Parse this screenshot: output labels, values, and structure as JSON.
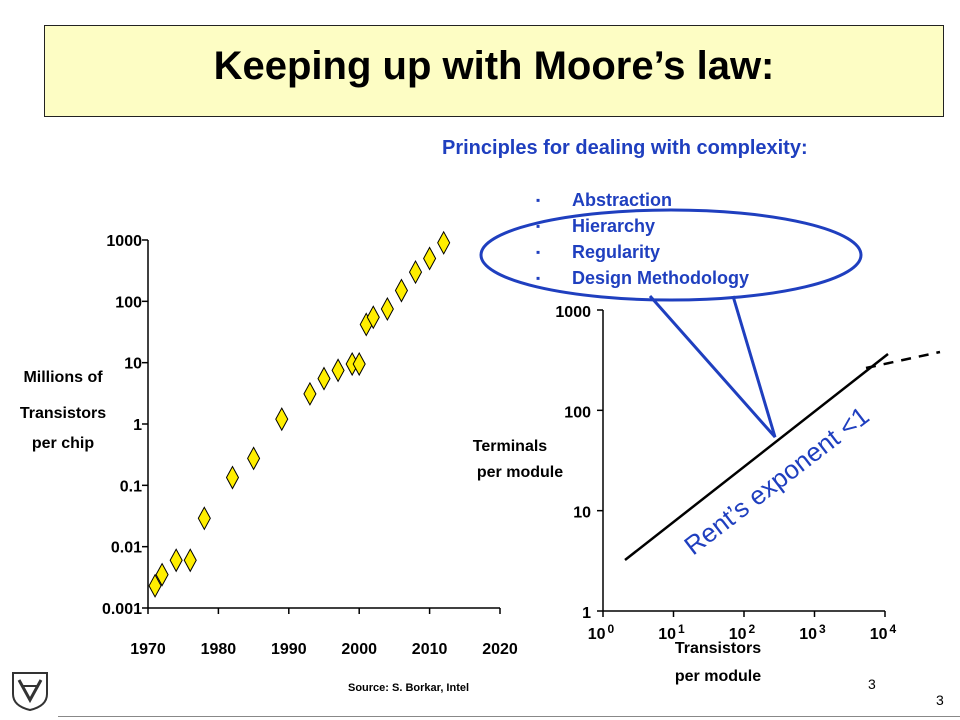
{
  "title": "Keeping up with Moore’s law:",
  "principles": {
    "heading": "Principles for dealing with complexity:",
    "bullet_char": "▪",
    "items": [
      "Abstraction",
      "Hierarchy",
      "Regularity",
      "Design Methodology"
    ]
  },
  "chart_data": [
    {
      "type": "scatter",
      "ylabel": [
        "Millions of",
        "Transistors",
        "per chip"
      ],
      "x_ticks": [
        "1970",
        "1980",
        "1990",
        "2000",
        "2010",
        "2020"
      ],
      "y_ticks": [
        "0.001",
        "0.01",
        "0.1",
        "1",
        "10",
        "100",
        "1000"
      ],
      "xlim": [
        1970,
        2020
      ],
      "ylim": [
        0.001,
        1000
      ],
      "y_scale": "log",
      "marker_color": "#ffee00",
      "points": [
        {
          "x": 1971,
          "y": 0.0023
        },
        {
          "x": 1972,
          "y": 0.0035
        },
        {
          "x": 1974,
          "y": 0.006
        },
        {
          "x": 1976,
          "y": 0.006
        },
        {
          "x": 1978,
          "y": 0.029
        },
        {
          "x": 1982,
          "y": 0.134
        },
        {
          "x": 1985,
          "y": 0.275
        },
        {
          "x": 1989,
          "y": 1.2
        },
        {
          "x": 1993,
          "y": 3.1
        },
        {
          "x": 1995,
          "y": 5.5
        },
        {
          "x": 1997,
          "y": 7.5
        },
        {
          "x": 1999,
          "y": 9.5
        },
        {
          "x": 2000,
          "y": 9.5
        },
        {
          "x": 2001,
          "y": 42
        },
        {
          "x": 2002,
          "y": 55
        },
        {
          "x": 2004,
          "y": 75
        },
        {
          "x": 2006,
          "y": 150
        },
        {
          "x": 2008,
          "y": 300
        },
        {
          "x": 2010,
          "y": 500
        },
        {
          "x": 2012,
          "y": 900
        }
      ]
    },
    {
      "type": "line",
      "ylabel": [
        "Terminals",
        "per module"
      ],
      "xlabel": [
        "Transistors",
        "per module"
      ],
      "x_ticks": [
        "10",
        "10",
        "10",
        "10",
        "10"
      ],
      "x_tick_exponents": [
        "0",
        "1",
        "2",
        "3",
        "4"
      ],
      "y_ticks": [
        "1",
        "10",
        "100",
        "1000"
      ],
      "x_scale": "log",
      "y_scale": "log",
      "annotation": "Rent’s exponent <1"
    }
  ],
  "footer": {
    "source": "Source: S. Borkar, Intel",
    "slide_number_inner": "3",
    "slide_number_outer": "3"
  }
}
